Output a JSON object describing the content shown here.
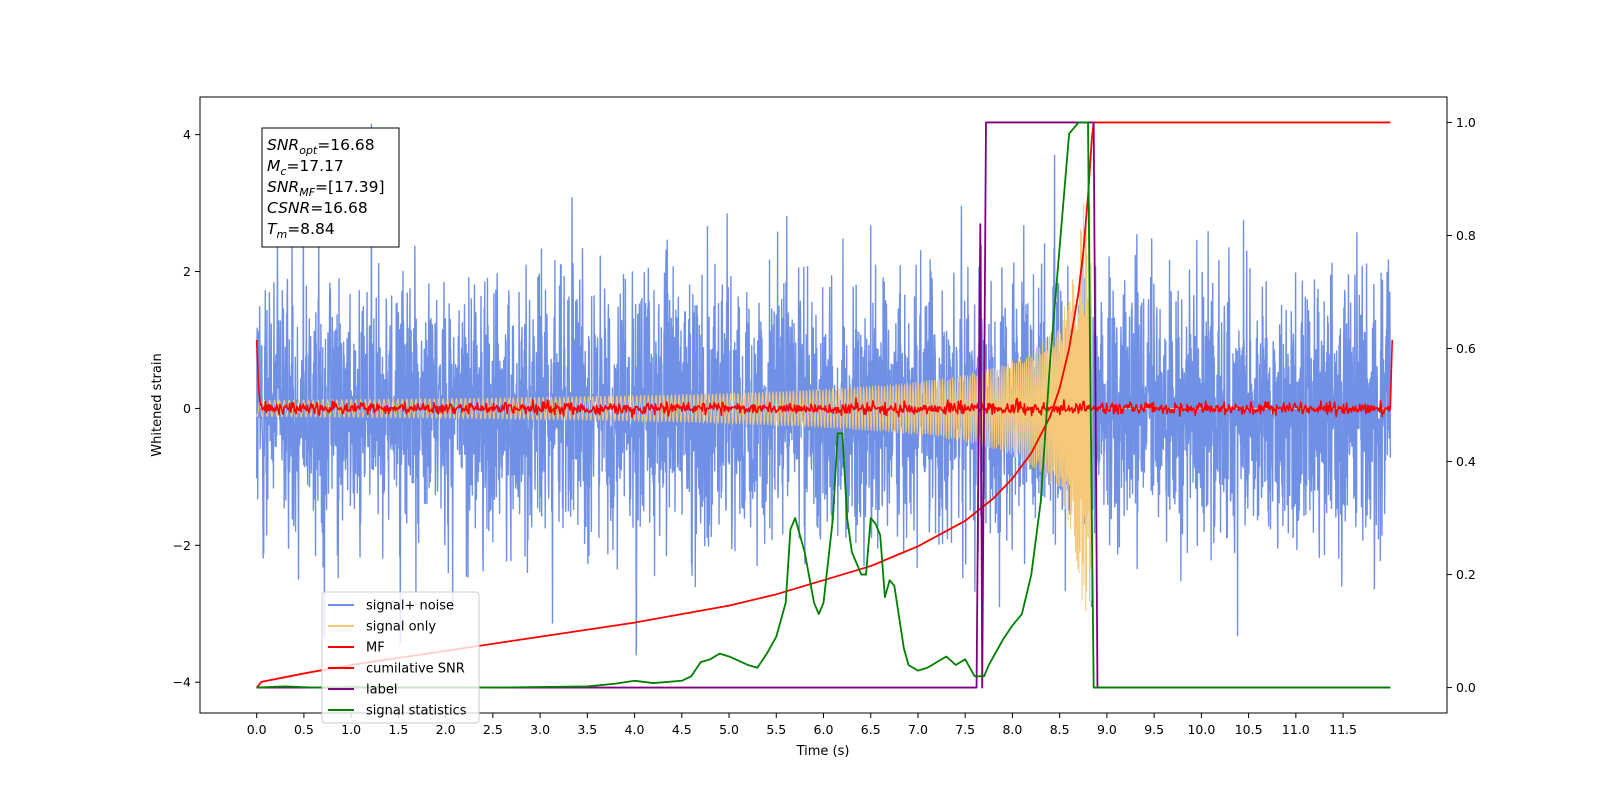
{
  "chart_data": {
    "type": "line",
    "title": "",
    "xlabel": "Time (s)",
    "ylabel": "Whitened strain",
    "y2label": "",
    "xlim": [
      -0.6,
      12.6
    ],
    "ylim": [
      -4.45,
      4.55
    ],
    "y2lim": [
      -0.045,
      1.045
    ],
    "x_ticks": [
      0.0,
      0.5,
      1.0,
      1.5,
      2.0,
      2.5,
      3.0,
      3.5,
      4.0,
      4.5,
      5.0,
      5.5,
      6.0,
      6.5,
      7.0,
      7.5,
      8.0,
      8.5,
      9.0,
      9.5,
      10.0,
      10.5,
      11.0,
      11.5
    ],
    "x_tick_labels": [
      "0.0",
      "0.5",
      "1.0",
      "1.5",
      "2.0",
      "2.5",
      "3.0",
      "3.5",
      "4.0",
      "4.5",
      "5.0",
      "5.5",
      "6.0",
      "6.5",
      "7.0",
      "7.5",
      "8.0",
      "8.5",
      "9.0",
      "9.5",
      "10.0",
      "10.5",
      "11.0",
      "11.5"
    ],
    "y_ticks": [
      -4,
      -2,
      0,
      2,
      4
    ],
    "y_tick_labels": [
      "−4",
      "−2",
      "0",
      "2",
      "4"
    ],
    "y2_ticks": [
      0.0,
      0.2,
      0.4,
      0.6,
      0.8,
      1.0
    ],
    "y2_tick_labels": [
      "0.0",
      "0.2",
      "0.4",
      "0.6",
      "0.8",
      "1.0"
    ],
    "grid": false,
    "legend_position": "lower-left",
    "annotation": {
      "lines": [
        {
          "var": "SNR",
          "sub": "opt",
          "value": "=16.68"
        },
        {
          "var": "M",
          "sub": "c",
          "value": "=17.17"
        },
        {
          "var": "SNR",
          "sub": "MF",
          "value": "=[17.39]"
        },
        {
          "var": "CSNR",
          "sub": "",
          "value": "=16.68"
        },
        {
          "var": "T",
          "sub": "m",
          "value": "=8.84"
        }
      ]
    },
    "series": [
      {
        "name": "signal+ noise",
        "axis": "left",
        "color": "#7090e6",
        "style": "noise",
        "description_range": [
          -3.6,
          4.15
        ]
      },
      {
        "name": "signal only",
        "axis": "left",
        "color": "#f5c979",
        "style": "chirp",
        "merger_time": 8.84
      },
      {
        "name": "MF",
        "axis": "left",
        "color": "#ff0000",
        "style": "mf",
        "x": [
          0.0,
          0.02,
          0.04,
          0.06,
          0.1,
          12.0,
          12.02
        ],
        "y": [
          1.0,
          0.3,
          0.05,
          0.0,
          0.0,
          0.0,
          1.0
        ]
      },
      {
        "name": "cumilative SNR",
        "axis": "right",
        "color": "#ff0000",
        "x": [
          0.0,
          0.05,
          0.5,
          1.0,
          2.0,
          3.0,
          4.0,
          5.0,
          5.5,
          6.0,
          6.5,
          7.0,
          7.5,
          7.8,
          8.0,
          8.2,
          8.4,
          8.5,
          8.6,
          8.7,
          8.75,
          8.8,
          8.84,
          8.86,
          12.0
        ],
        "y": [
          0.0,
          0.01,
          0.025,
          0.04,
          0.065,
          0.09,
          0.115,
          0.145,
          0.165,
          0.19,
          0.215,
          0.25,
          0.295,
          0.335,
          0.37,
          0.415,
          0.48,
          0.53,
          0.6,
          0.7,
          0.77,
          0.87,
          0.97,
          1.0,
          1.0
        ]
      },
      {
        "name": "label",
        "axis": "right",
        "color": "#800080",
        "x": [
          0.0,
          7.62,
          7.66,
          7.68,
          7.72,
          8.86,
          8.9,
          12.0
        ],
        "y": [
          0.0,
          0.0,
          0.82,
          0.0,
          1.0,
          1.0,
          0.0,
          0.0
        ]
      },
      {
        "name": "signal statistics",
        "axis": "right",
        "color": "#008000",
        "x": [
          0.0,
          0.3,
          0.6,
          1.0,
          1.5,
          2.0,
          2.5,
          3.0,
          3.5,
          3.8,
          4.0,
          4.2,
          4.5,
          4.6,
          4.7,
          4.8,
          4.9,
          5.0,
          5.2,
          5.3,
          5.4,
          5.5,
          5.6,
          5.65,
          5.7,
          5.75,
          5.8,
          5.9,
          5.95,
          6.0,
          6.1,
          6.15,
          6.2,
          6.25,
          6.3,
          6.4,
          6.45,
          6.5,
          6.55,
          6.6,
          6.65,
          6.7,
          6.75,
          6.85,
          6.9,
          7.0,
          7.1,
          7.2,
          7.3,
          7.4,
          7.5,
          7.6,
          7.7,
          7.75,
          7.8,
          7.9,
          8.0,
          8.1,
          8.2,
          8.3,
          8.4,
          8.5,
          8.6,
          8.7,
          8.8,
          8.82,
          8.86,
          8.9,
          9.0,
          12.0
        ],
        "y": [
          0.0,
          0.002,
          0.0,
          0.001,
          0.0,
          0.0,
          0.0,
          0.001,
          0.002,
          0.007,
          0.012,
          0.008,
          0.012,
          0.02,
          0.045,
          0.05,
          0.06,
          0.055,
          0.04,
          0.035,
          0.06,
          0.09,
          0.15,
          0.28,
          0.3,
          0.27,
          0.24,
          0.15,
          0.13,
          0.15,
          0.3,
          0.45,
          0.45,
          0.3,
          0.24,
          0.2,
          0.2,
          0.3,
          0.29,
          0.27,
          0.16,
          0.19,
          0.18,
          0.07,
          0.04,
          0.03,
          0.035,
          0.045,
          0.055,
          0.04,
          0.05,
          0.02,
          0.02,
          0.04,
          0.055,
          0.085,
          0.11,
          0.13,
          0.2,
          0.33,
          0.58,
          0.78,
          0.98,
          1.0,
          1.0,
          0.62,
          0.0,
          0.0,
          0.0,
          0.0
        ]
      }
    ]
  }
}
